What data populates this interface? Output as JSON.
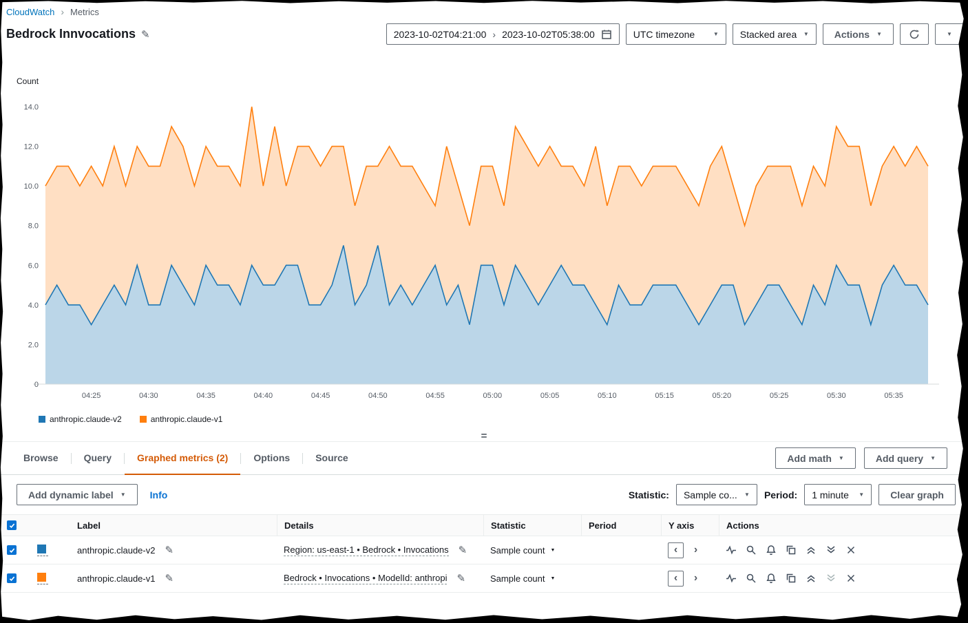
{
  "breadcrumb": {
    "items": [
      "CloudWatch",
      "Metrics"
    ]
  },
  "header": {
    "title": "Bedrock Innvocations"
  },
  "toolbar": {
    "start_time": "2023-10-02T04:21:00",
    "end_time": "2023-10-02T05:38:00",
    "timezone": "UTC timezone",
    "chart_type": "Stacked area",
    "actions_label": "Actions"
  },
  "chart_data": {
    "type": "area",
    "stacked": true,
    "title": "",
    "xlabel": "",
    "ylabel": "Count",
    "ylim": [
      0,
      14
    ],
    "yticks": [
      "0",
      "2.0",
      "4.0",
      "6.0",
      "8.0",
      "10.0",
      "12.0",
      "14.0"
    ],
    "x_start": "04:21",
    "x_end": "05:38",
    "period": "1 minute",
    "xticks": [
      "04:25",
      "04:30",
      "04:35",
      "04:40",
      "04:45",
      "04:50",
      "04:55",
      "05:00",
      "05:05",
      "05:10",
      "05:15",
      "05:20",
      "05:25",
      "05:30",
      "05:35"
    ],
    "xtick_indices": [
      4,
      9,
      14,
      19,
      24,
      29,
      34,
      39,
      44,
      49,
      54,
      59,
      64,
      69,
      74
    ],
    "legend_position": "bottom",
    "grid": false,
    "series": [
      {
        "name": "anthropic.claude-v2",
        "color": "#1f77b4",
        "fill": "rgba(31,119,180,0.30)",
        "values": [
          4,
          5,
          4,
          4,
          3,
          4,
          5,
          4,
          6,
          4,
          4,
          6,
          5,
          4,
          6,
          5,
          5,
          4,
          6,
          5,
          5,
          6,
          6,
          4,
          4,
          5,
          7,
          4,
          5,
          7,
          4,
          5,
          4,
          5,
          6,
          4,
          5,
          3,
          6,
          6,
          4,
          6,
          5,
          4,
          5,
          6,
          5,
          5,
          4,
          3,
          5,
          4,
          4,
          5,
          5,
          5,
          4,
          3,
          4,
          5,
          5,
          3,
          4,
          5,
          5,
          4,
          3,
          5,
          4,
          6,
          5,
          5,
          3,
          5,
          6,
          5,
          5,
          4
        ]
      },
      {
        "name": "anthropic.claude-v1",
        "color": "#ff7f0e",
        "fill": "rgba(255,127,14,0.25)",
        "values": [
          6,
          6,
          7,
          6,
          8,
          6,
          7,
          6,
          6,
          7,
          7,
          7,
          7,
          6,
          6,
          6,
          6,
          6,
          8,
          5,
          8,
          4,
          6,
          8,
          7,
          7,
          5,
          5,
          6,
          4,
          8,
          6,
          7,
          5,
          3,
          8,
          5,
          5,
          5,
          5,
          5,
          7,
          7,
          7,
          7,
          5,
          6,
          5,
          8,
          6,
          6,
          7,
          6,
          6,
          6,
          6,
          6,
          6,
          7,
          7,
          5,
          5,
          6,
          6,
          6,
          7,
          6,
          6,
          6,
          7,
          7,
          7,
          6,
          6,
          6,
          6,
          7,
          7
        ]
      }
    ]
  },
  "legend": {
    "items": [
      {
        "label": "anthropic.claude-v2",
        "color": "#1f77b4"
      },
      {
        "label": "anthropic.claude-v1",
        "color": "#ff7f0e"
      }
    ]
  },
  "tabs": {
    "items": [
      "Browse",
      "Query",
      "Graphed metrics (2)",
      "Options",
      "Source"
    ],
    "active": "Graphed metrics (2)"
  },
  "actions_bar": {
    "add_math": "Add math",
    "add_query": "Add query"
  },
  "subtoolbar": {
    "add_dynamic_label": "Add dynamic label",
    "info": "Info",
    "statistic_label": "Statistic:",
    "statistic_value": "Sample co...",
    "period_label": "Period:",
    "period_value": "1 minute",
    "clear_graph": "Clear graph"
  },
  "table": {
    "columns": [
      "Label",
      "Details",
      "Statistic",
      "Period",
      "Y axis",
      "Actions"
    ],
    "rows": [
      {
        "checked": true,
        "color": "#1f77b4",
        "label": "anthropic.claude-v2",
        "details": "Region: us-east-1 • Bedrock • Invocations",
        "statistic": "Sample count",
        "period": "",
        "y_axis": "left"
      },
      {
        "checked": true,
        "color": "#ff7f0e",
        "label": "anthropic.claude-v1",
        "details": "Bedrock • Invocations • ModelId: anthropi",
        "statistic": "Sample count",
        "period": "",
        "y_axis": "left"
      }
    ]
  },
  "icons": {
    "caret_down": "▼",
    "edit_pencil": "✎",
    "breadcrumb_separator": "›",
    "date_range_separator": "›",
    "resize_handle": "=",
    "y_axis_left": "‹",
    "y_axis_right": "›"
  },
  "colors": {
    "accent_orange": "#d45b07",
    "link_blue": "#0073bb",
    "checkbox_blue": "#0972d3"
  }
}
